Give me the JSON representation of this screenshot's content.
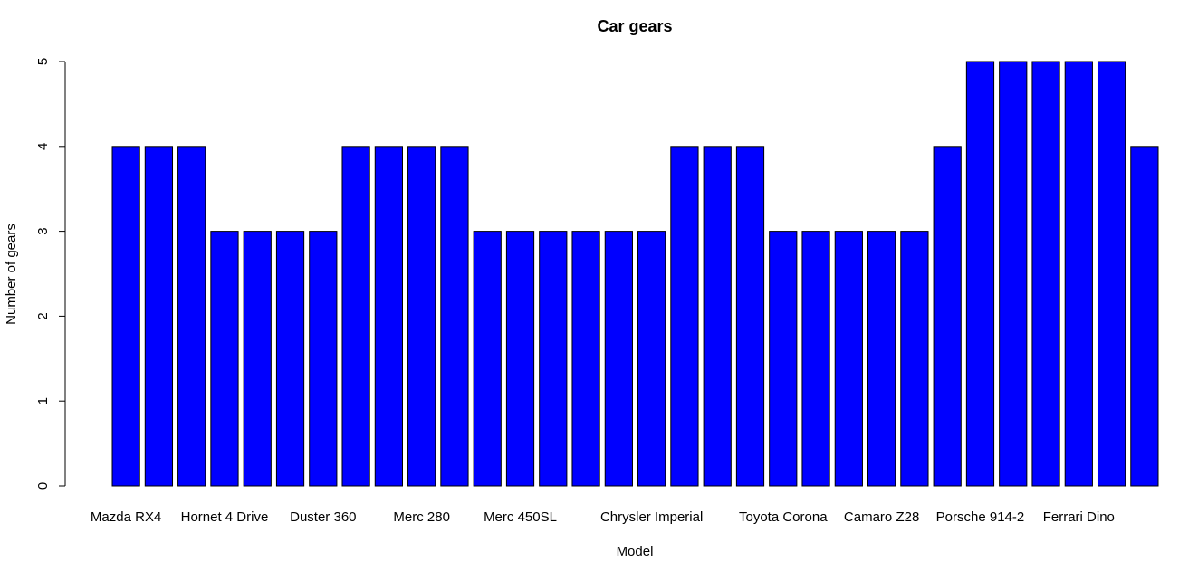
{
  "chart_data": {
    "type": "bar",
    "title": "Car gears",
    "x_label": "Model",
    "y_label": "Number of gears",
    "categories": [
      "Mazda RX4",
      null,
      null,
      "Hornet 4 Drive",
      null,
      null,
      "Duster 360",
      null,
      null,
      "Merc 280",
      null,
      null,
      "Merc 450SL",
      null,
      null,
      null,
      "Chrysler Imperial",
      null,
      null,
      null,
      "Toyota Corona",
      null,
      null,
      "Camaro Z28",
      null,
      null,
      "Porsche 914-2",
      null,
      null,
      "Ferrari Dino",
      null,
      null
    ],
    "values": [
      4,
      4,
      4,
      3,
      3,
      3,
      3,
      4,
      4,
      4,
      4,
      3,
      3,
      3,
      3,
      3,
      3,
      4,
      4,
      4,
      3,
      3,
      3,
      3,
      3,
      4,
      5,
      5,
      5,
      5,
      5,
      4
    ],
    "color": "#0000ff",
    "ylim": [
      0,
      5
    ],
    "yticks": [
      0,
      1,
      2,
      3,
      4,
      5
    ]
  }
}
